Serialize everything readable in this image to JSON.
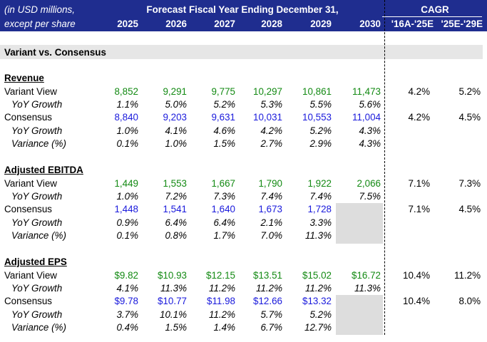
{
  "header": {
    "unit_line1": "(in USD millions,",
    "unit_line2": "except per share",
    "forecast_title": "Forecast Fiscal Year Ending December 31,",
    "cagr_title": "CAGR",
    "years": [
      "2025",
      "2026",
      "2027",
      "2028",
      "2029",
      "2030"
    ],
    "cagr_cols": [
      "'16A-'25E",
      "'25E-'29E"
    ]
  },
  "section_title": "Variant vs. Consensus",
  "revenue": {
    "title": "Revenue",
    "variant_label": "Variant View",
    "variant": [
      "8,852",
      "9,291",
      "9,775",
      "10,297",
      "10,861",
      "11,473"
    ],
    "variant_cagr": [
      "4.2%",
      "5.2%"
    ],
    "variant_yoy_label": "YoY Growth",
    "variant_yoy": [
      "1.1%",
      "5.0%",
      "5.2%",
      "5.3%",
      "5.5%",
      "5.6%"
    ],
    "consensus_label": "Consensus",
    "consensus": [
      "8,840",
      "9,203",
      "9,631",
      "10,031",
      "10,553",
      "11,004"
    ],
    "consensus_cagr": [
      "4.2%",
      "4.5%"
    ],
    "consensus_yoy_label": "YoY Growth",
    "consensus_yoy": [
      "1.0%",
      "4.1%",
      "4.6%",
      "4.2%",
      "5.2%",
      "4.3%"
    ],
    "variance_label": "Variance (%)",
    "variance": [
      "0.1%",
      "1.0%",
      "1.5%",
      "2.7%",
      "2.9%",
      "4.3%"
    ]
  },
  "ebitda": {
    "title": "Adjusted EBITDA",
    "variant_label": "Variant View",
    "variant": [
      "1,449",
      "1,553",
      "1,667",
      "1,790",
      "1,922",
      "2,066"
    ],
    "variant_cagr": [
      "7.1%",
      "7.3%"
    ],
    "variant_yoy_label": "YoY Growth",
    "variant_yoy": [
      "1.0%",
      "7.2%",
      "7.3%",
      "7.4%",
      "7.4%",
      "7.5%"
    ],
    "consensus_label": "Consensus",
    "consensus": [
      "1,448",
      "1,541",
      "1,640",
      "1,673",
      "1,728"
    ],
    "consensus_cagr": [
      "7.1%",
      "4.5%"
    ],
    "consensus_yoy_label": "YoY Growth",
    "consensus_yoy": [
      "0.9%",
      "6.4%",
      "6.4%",
      "2.1%",
      "3.3%"
    ],
    "variance_label": "Variance (%)",
    "variance": [
      "0.1%",
      "0.8%",
      "1.7%",
      "7.0%",
      "11.3%"
    ]
  },
  "eps": {
    "title": "Adjusted EPS",
    "variant_label": "Variant View",
    "variant": [
      "$9.82",
      "$10.93",
      "$12.15",
      "$13.51",
      "$15.02",
      "$16.72"
    ],
    "variant_cagr": [
      "10.4%",
      "11.2%"
    ],
    "variant_yoy_label": "YoY Growth",
    "variant_yoy": [
      "4.1%",
      "11.3%",
      "11.2%",
      "11.2%",
      "11.2%",
      "11.3%"
    ],
    "consensus_label": "Consensus",
    "consensus": [
      "$9.78",
      "$10.77",
      "$11.98",
      "$12.66",
      "$13.32"
    ],
    "consensus_cagr": [
      "10.4%",
      "8.0%"
    ],
    "consensus_yoy_label": "YoY Growth",
    "consensus_yoy": [
      "3.7%",
      "10.1%",
      "11.2%",
      "5.7%",
      "5.2%"
    ],
    "variance_label": "Variance (%)",
    "variance": [
      "0.4%",
      "1.5%",
      "1.4%",
      "6.7%",
      "12.7%"
    ]
  }
}
